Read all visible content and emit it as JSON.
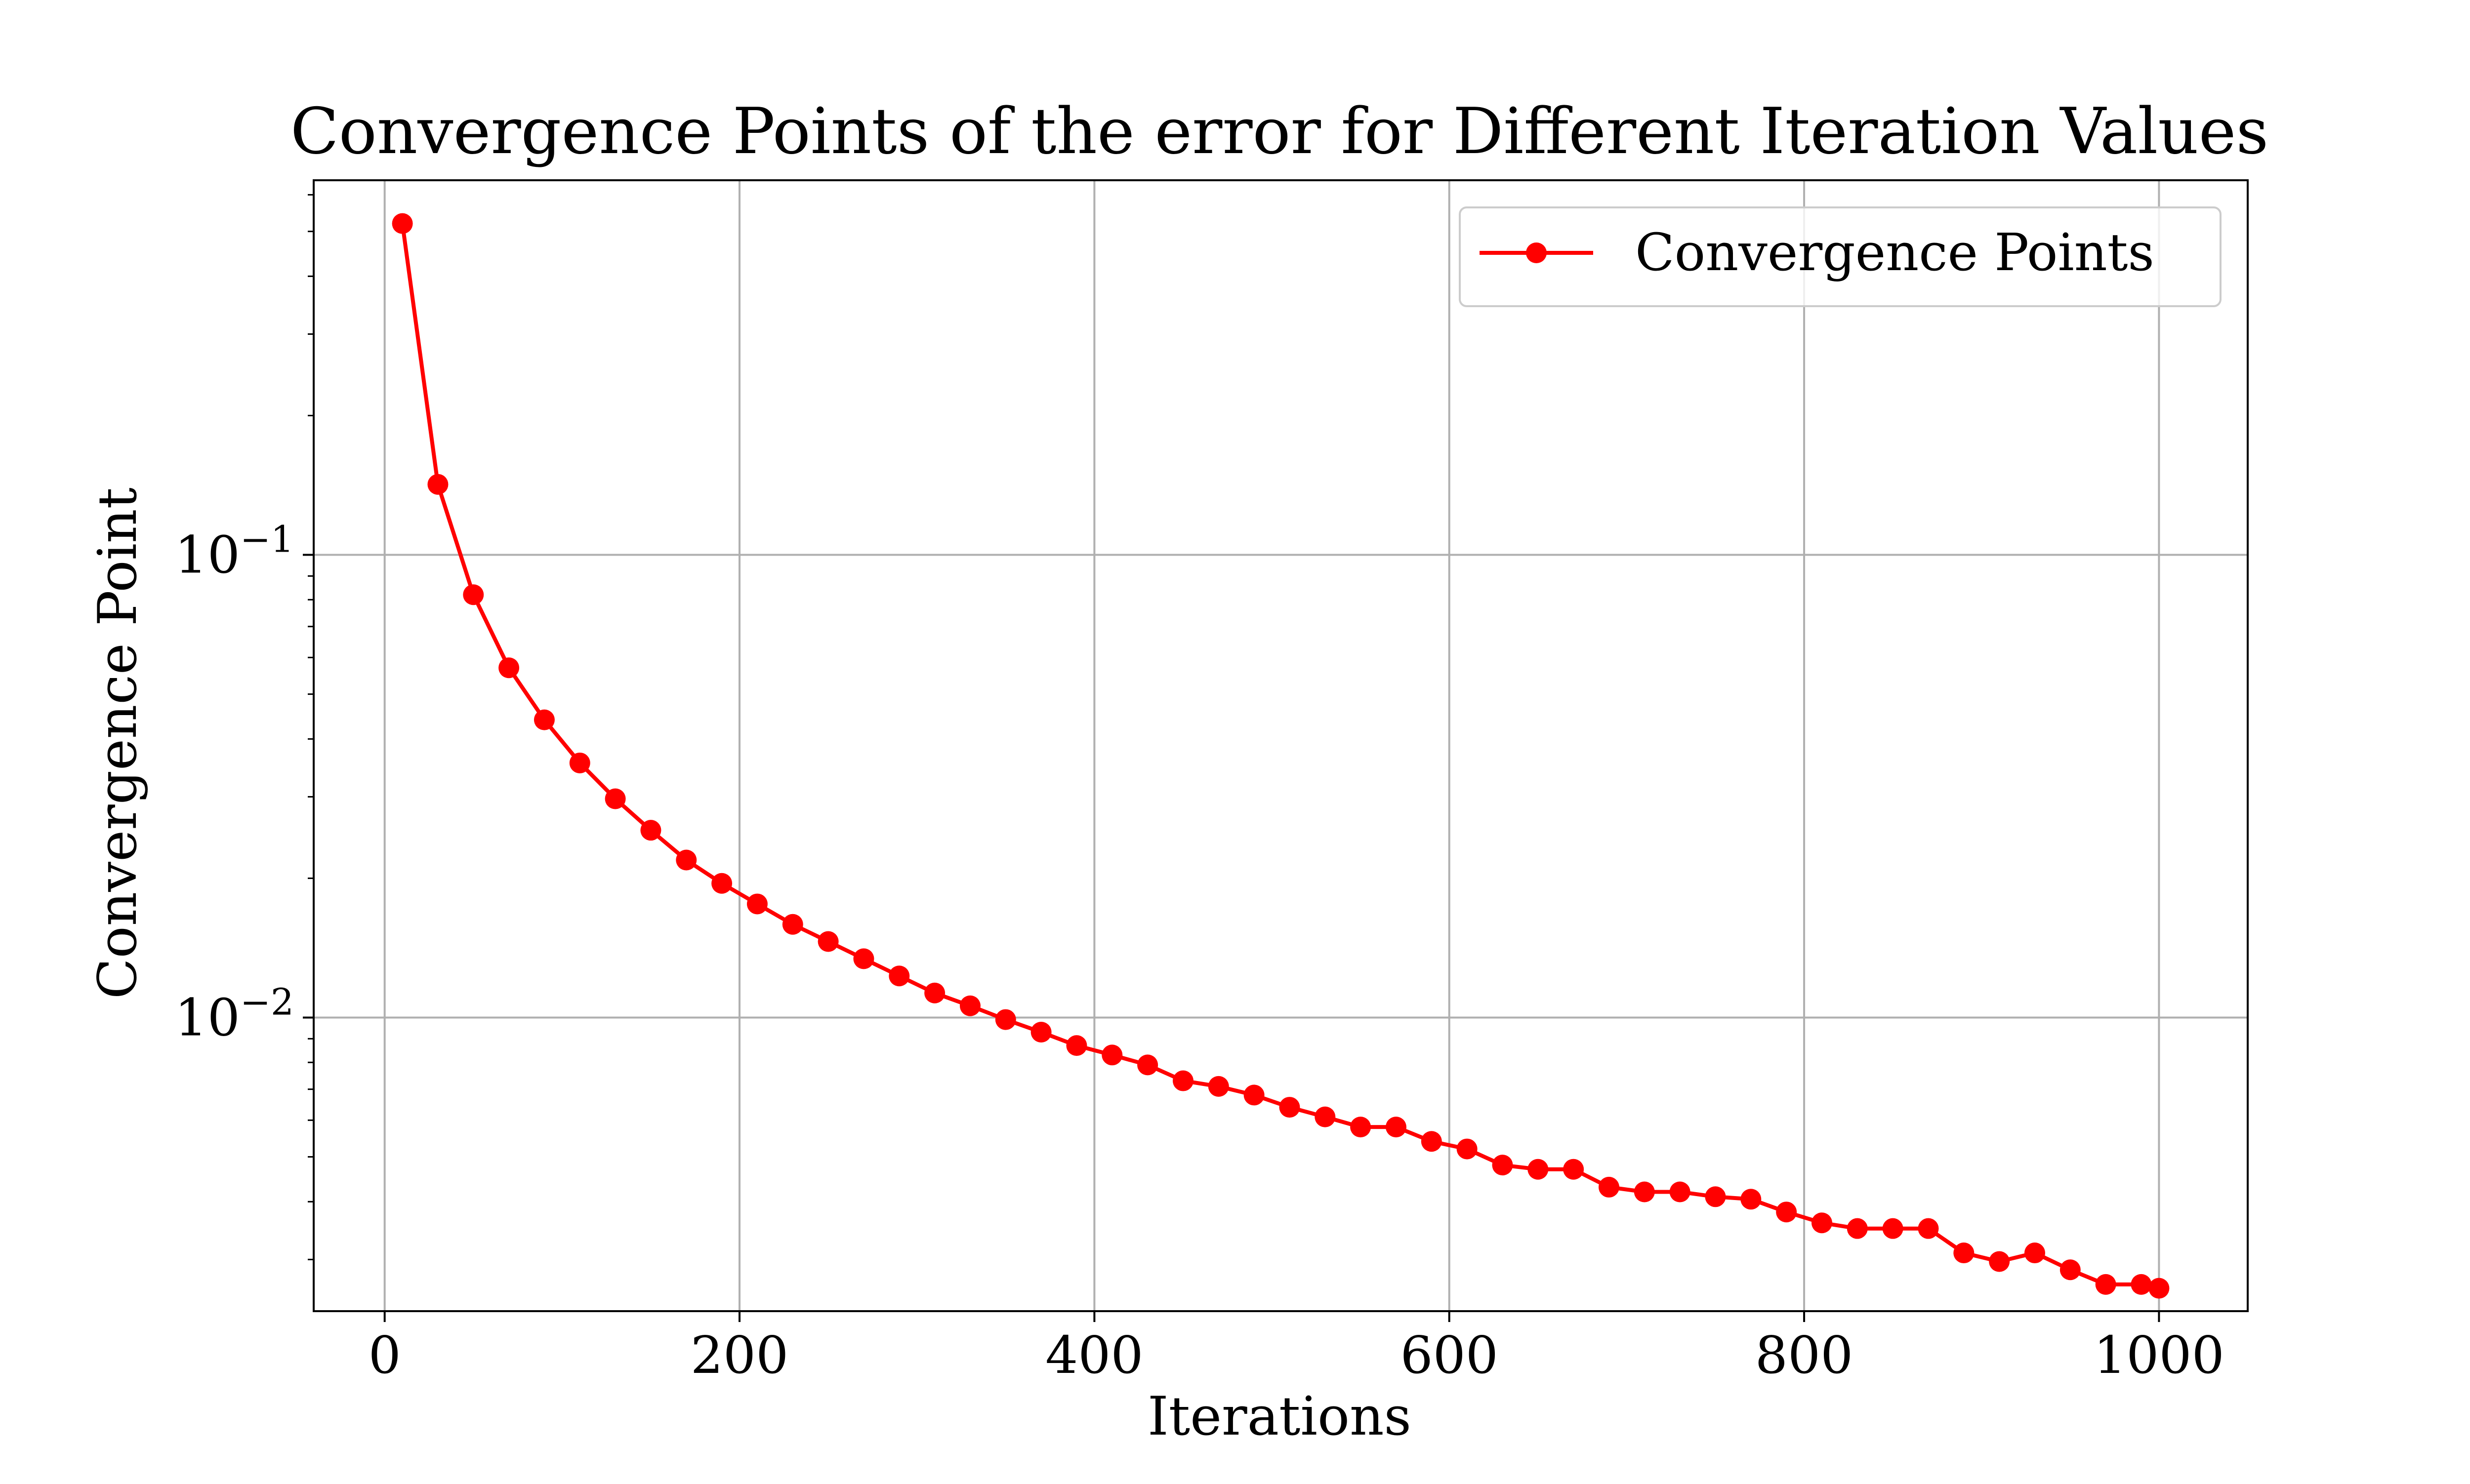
{
  "chart_data": {
    "type": "line",
    "title": "Convergence Points of the error for Different Iteration Values",
    "xlabel": "Iterations",
    "ylabel": "Convergence Point",
    "xlim": [
      -40,
      1050
    ],
    "ylim": [
      0.00232,
      0.645
    ],
    "y_scale": "log",
    "x_ticks": [
      0,
      200,
      400,
      600,
      800,
      1000
    ],
    "x_tick_labels": [
      "0",
      "200",
      "400",
      "600",
      "800",
      "1000"
    ],
    "y_ticks": [
      {
        "value": 0.1,
        "base": "10",
        "exponent": "−1"
      },
      {
        "value": 0.01,
        "base": "10",
        "exponent": "−2"
      }
    ],
    "grid": true,
    "legend": {
      "position": "top-right"
    },
    "colors": {
      "line": "#ff0000",
      "grid": "#b0b0b0",
      "axes": "#000000"
    },
    "series": [
      {
        "name": "Convergence Points",
        "marker": "circle",
        "x": [
          10,
          30,
          50,
          70,
          90,
          110,
          130,
          150,
          170,
          190,
          210,
          230,
          250,
          270,
          290,
          310,
          330,
          350,
          370,
          390,
          410,
          430,
          450,
          470,
          490,
          510,
          530,
          550,
          570,
          590,
          610,
          630,
          650,
          670,
          690,
          710,
          730,
          750,
          770,
          790,
          810,
          830,
          850,
          870,
          890,
          910,
          930,
          950,
          970,
          990,
          1000
        ],
        "y": [
          0.52,
          0.142,
          0.082,
          0.057,
          0.044,
          0.0355,
          0.0297,
          0.0254,
          0.0219,
          0.0195,
          0.0176,
          0.0159,
          0.0146,
          0.0134,
          0.0123,
          0.0113,
          0.0106,
          0.0099,
          0.0093,
          0.0087,
          0.0083,
          0.0079,
          0.0073,
          0.0071,
          0.0068,
          0.0064,
          0.0061,
          0.0058,
          0.0058,
          0.0054,
          0.0052,
          0.0048,
          0.0047,
          0.0047,
          0.0043,
          0.0042,
          0.0042,
          0.0041,
          0.00405,
          0.0038,
          0.0036,
          0.0035,
          0.0035,
          0.0035,
          0.0031,
          0.00297,
          0.0031,
          0.00285,
          0.00265,
          0.00265,
          0.0026
        ]
      }
    ]
  }
}
